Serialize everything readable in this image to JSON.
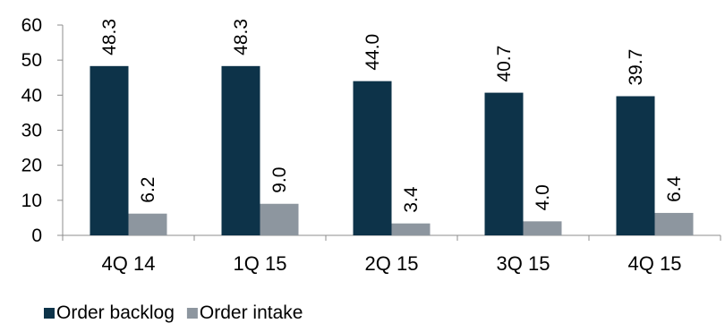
{
  "chart_data": {
    "type": "bar",
    "categories": [
      "4Q 14",
      "1Q 15",
      "2Q 15",
      "3Q 15",
      "4Q 15"
    ],
    "series": [
      {
        "name": "Order backlog",
        "values": [
          48.3,
          48.3,
          44.0,
          40.7,
          39.7
        ],
        "labels": [
          "48.3",
          "48.3",
          "44.0",
          "40.7",
          "39.7"
        ],
        "color": "#0d3349"
      },
      {
        "name": "Order intake",
        "values": [
          6.2,
          9.0,
          3.4,
          4.0,
          6.4
        ],
        "labels": [
          "6.2",
          "9.0",
          "3.4",
          "4.0",
          "6.4"
        ],
        "color": "#8d969f"
      }
    ],
    "ylim": [
      0,
      60
    ],
    "yticks": [
      "0",
      "10",
      "20",
      "30",
      "40",
      "50",
      "60"
    ],
    "grid": false,
    "legend_position": "bottom-left"
  }
}
